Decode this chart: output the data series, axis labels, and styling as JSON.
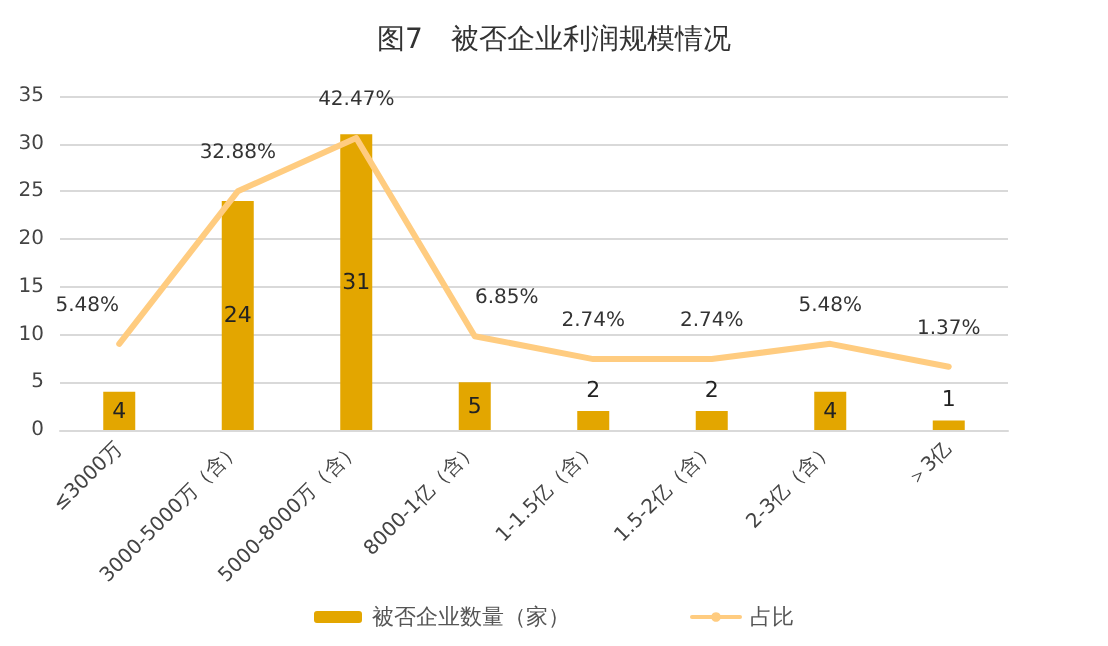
{
  "chart_data": {
    "type": "bar",
    "title": "图7　被否企业利润规模情况",
    "categories": [
      "≤3000万",
      "3000-5000万（含）",
      "5000-8000万（含）",
      "8000-1亿（含）",
      "1-1.5亿（含）",
      "1.5-2亿（含）",
      "2-3亿（含）",
      "＞3亿"
    ],
    "series": [
      {
        "name": "被否企业数量（家）",
        "color": "#e3a600",
        "values": [
          4,
          24,
          31,
          5,
          2,
          2,
          4,
          1
        ],
        "value_labels": [
          "4",
          "24",
          "31",
          "5",
          "2",
          "2",
          "4",
          "1"
        ]
      },
      {
        "name": "占比",
        "type": "line",
        "axis": "y2",
        "color": "#ffcc80",
        "values": [
          5.48,
          32.88,
          42.47,
          6.85,
          2.74,
          2.74,
          5.48,
          1.37
        ],
        "value_labels": [
          "5.48%",
          "32.88%",
          "42.47%",
          "6.85%",
          "2.74%",
          "2.74%",
          "5.48%",
          "1.37%"
        ]
      }
    ],
    "ylim": [
      0,
      35
    ],
    "yticks": [
      0,
      5,
      10,
      15,
      20,
      25,
      30,
      35
    ],
    "y2lim": [
      -10,
      50
    ],
    "grid": "y",
    "legend": "bottom",
    "marker": "none",
    "line_style": "solid"
  }
}
